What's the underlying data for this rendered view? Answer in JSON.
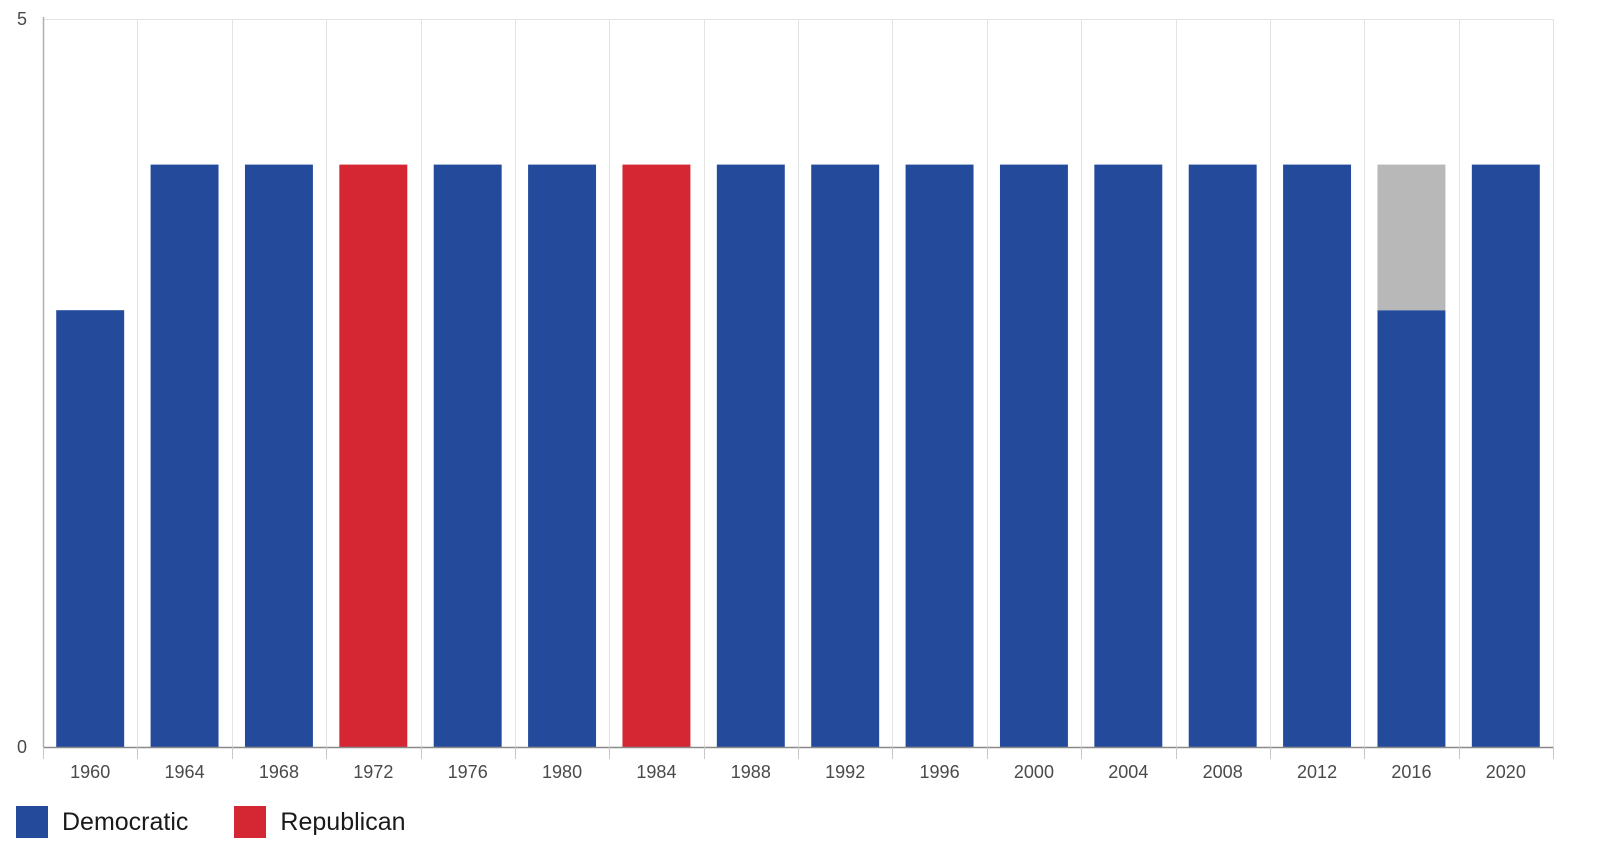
{
  "chart_data": {
    "type": "bar",
    "stacked": true,
    "categories": [
      "1960",
      "1964",
      "1968",
      "1972",
      "1976",
      "1980",
      "1984",
      "1988",
      "1992",
      "1996",
      "2000",
      "2004",
      "2008",
      "2012",
      "2016",
      "2020"
    ],
    "series": [
      {
        "name": "Democratic",
        "color": "#244a9c",
        "values": [
          3,
          4,
          4,
          0,
          4,
          4,
          0,
          4,
          4,
          4,
          4,
          4,
          4,
          4,
          3,
          4
        ]
      },
      {
        "name": "Republican",
        "color": "#d42633",
        "values": [
          0,
          0,
          0,
          4,
          0,
          0,
          4,
          0,
          0,
          0,
          0,
          0,
          0,
          0,
          0,
          0
        ]
      },
      {
        "color": "#b8b8b8",
        "values": [
          0,
          0,
          0,
          0,
          0,
          0,
          0,
          0,
          0,
          0,
          0,
          0,
          0,
          0,
          1,
          0
        ]
      }
    ],
    "ylim": [
      0,
      5
    ],
    "yticks": [
      "0",
      "5"
    ],
    "grid": true,
    "legend_position": "bottom-left",
    "legend": [
      {
        "label": "Democratic",
        "color": "#244a9c"
      },
      {
        "label": "Republican",
        "color": "#d42633"
      }
    ]
  }
}
